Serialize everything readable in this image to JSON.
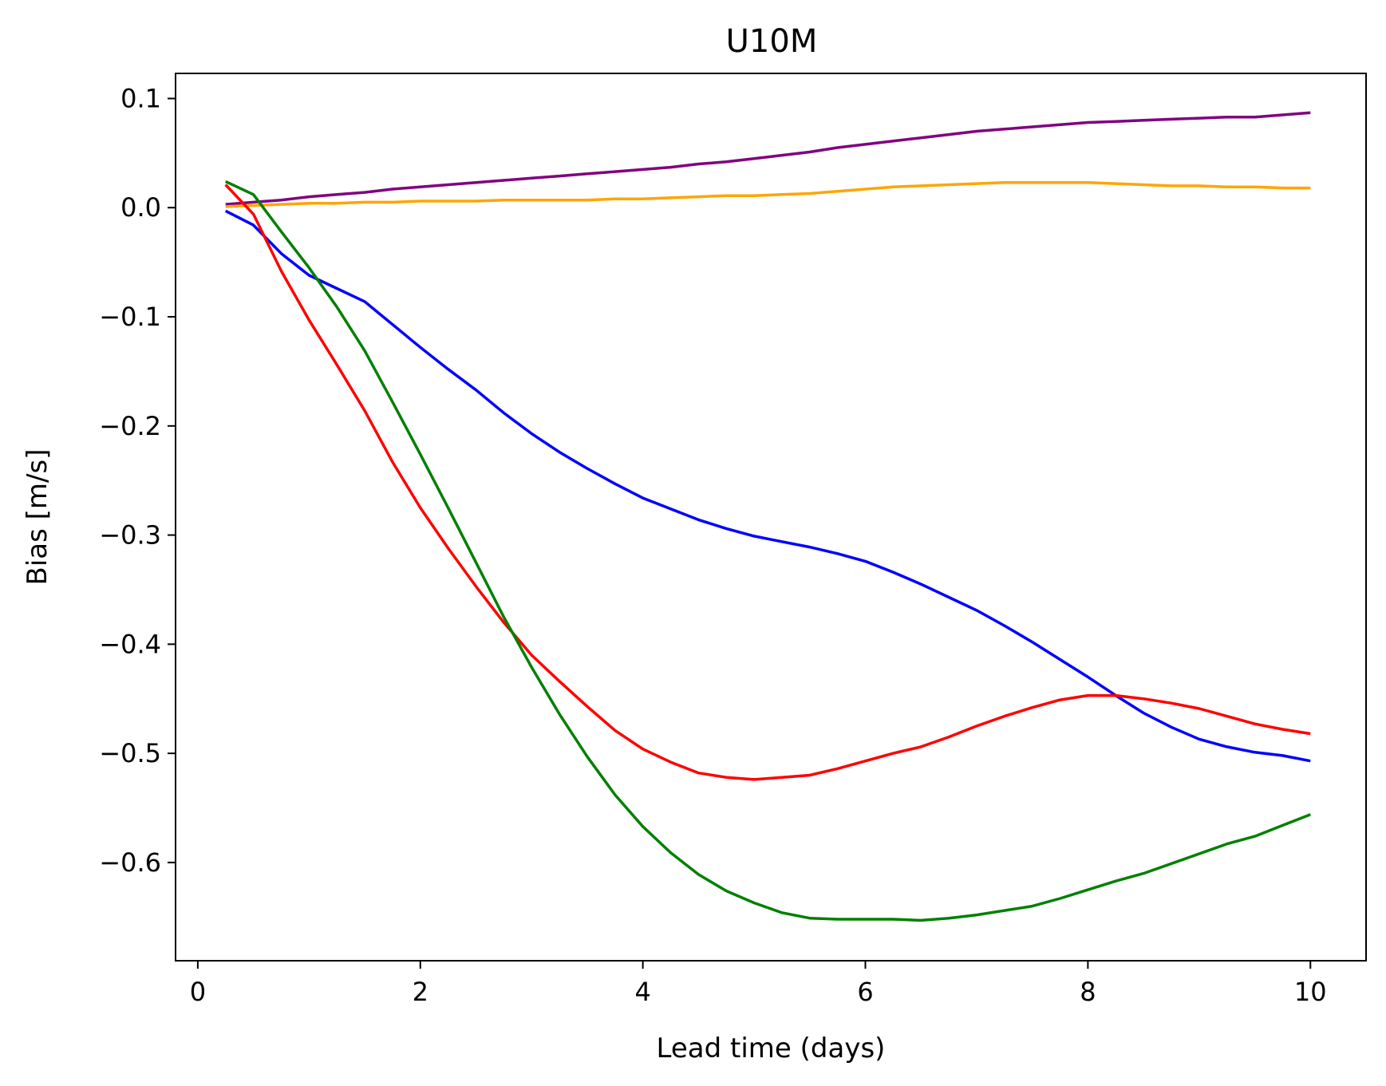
{
  "chart_data": {
    "type": "line",
    "title": "U10M",
    "xlabel": "Lead time (days)",
    "ylabel": "Bias [m/s]",
    "xlim": [
      -0.2,
      10.5
    ],
    "ylim": [
      -0.69,
      0.123
    ],
    "xticks": [
      0,
      2,
      4,
      6,
      8,
      10
    ],
    "yticks": [
      0.1,
      0.0,
      -0.1,
      -0.2,
      -0.3,
      -0.4,
      -0.5,
      -0.6
    ],
    "ytick_labels": [
      "0.1",
      "0.0",
      "−0.1",
      "−0.2",
      "−0.3",
      "−0.4",
      "−0.5",
      "−0.6"
    ],
    "grid": false,
    "x": [
      0.25,
      0.5,
      0.75,
      1.0,
      1.25,
      1.5,
      1.75,
      2.0,
      2.25,
      2.5,
      2.75,
      3.0,
      3.25,
      3.5,
      3.75,
      4.0,
      4.25,
      4.5,
      4.75,
      5.0,
      5.25,
      5.5,
      5.75,
      6.0,
      6.25,
      6.5,
      6.75,
      7.0,
      7.25,
      7.5,
      7.75,
      8.0,
      8.25,
      8.5,
      8.75,
      9.0,
      9.25,
      9.5,
      9.75,
      10.0
    ],
    "series": [
      {
        "color": "#800080",
        "values": [
          0.003,
          0.005,
          0.007,
          0.01,
          0.012,
          0.014,
          0.017,
          0.019,
          0.021,
          0.023,
          0.025,
          0.027,
          0.029,
          0.031,
          0.033,
          0.035,
          0.037,
          0.04,
          0.042,
          0.045,
          0.048,
          0.051,
          0.055,
          0.058,
          0.061,
          0.064,
          0.067,
          0.07,
          0.072,
          0.074,
          0.076,
          0.078,
          0.079,
          0.08,
          0.081,
          0.082,
          0.083,
          0.083,
          0.085,
          0.087
        ]
      },
      {
        "color": "#ffa500",
        "values": [
          0.001,
          0.002,
          0.003,
          0.004,
          0.004,
          0.005,
          0.005,
          0.006,
          0.006,
          0.006,
          0.007,
          0.007,
          0.007,
          0.007,
          0.008,
          0.008,
          0.009,
          0.01,
          0.011,
          0.011,
          0.012,
          0.013,
          0.015,
          0.017,
          0.019,
          0.02,
          0.021,
          0.022,
          0.023,
          0.023,
          0.023,
          0.023,
          0.022,
          0.021,
          0.02,
          0.02,
          0.019,
          0.019,
          0.018,
          0.018
        ]
      },
      {
        "color": "#0000ff",
        "values": [
          -0.003,
          -0.016,
          -0.042,
          -0.062,
          -0.074,
          -0.086,
          -0.107,
          -0.128,
          -0.148,
          -0.167,
          -0.188,
          -0.207,
          -0.224,
          -0.239,
          -0.253,
          -0.266,
          -0.276,
          -0.286,
          -0.294,
          -0.301,
          -0.306,
          -0.311,
          -0.317,
          -0.324,
          -0.334,
          -0.345,
          -0.357,
          -0.369,
          -0.383,
          -0.398,
          -0.414,
          -0.43,
          -0.447,
          -0.463,
          -0.476,
          -0.487,
          -0.494,
          -0.499,
          -0.502,
          -0.507
        ]
      },
      {
        "color": "#ff0000",
        "values": [
          0.021,
          -0.006,
          -0.058,
          -0.103,
          -0.144,
          -0.186,
          -0.233,
          -0.275,
          -0.312,
          -0.347,
          -0.38,
          -0.41,
          -0.434,
          -0.457,
          -0.479,
          -0.496,
          -0.508,
          -0.518,
          -0.522,
          -0.524,
          -0.522,
          -0.52,
          -0.514,
          -0.507,
          -0.5,
          -0.494,
          -0.485,
          -0.475,
          -0.466,
          -0.458,
          -0.451,
          -0.447,
          -0.447,
          -0.45,
          -0.454,
          -0.459,
          -0.466,
          -0.473,
          -0.478,
          -0.482
        ]
      },
      {
        "color": "#008000",
        "values": [
          0.024,
          0.012,
          -0.022,
          -0.055,
          -0.091,
          -0.131,
          -0.178,
          -0.226,
          -0.275,
          -0.325,
          -0.375,
          -0.421,
          -0.464,
          -0.503,
          -0.538,
          -0.567,
          -0.591,
          -0.611,
          -0.626,
          -0.637,
          -0.646,
          -0.651,
          -0.652,
          -0.652,
          -0.652,
          -0.653,
          -0.651,
          -0.648,
          -0.644,
          -0.64,
          -0.633,
          -0.625,
          -0.617,
          -0.61,
          -0.601,
          -0.592,
          -0.583,
          -0.576,
          -0.566,
          -0.556
        ]
      }
    ]
  }
}
